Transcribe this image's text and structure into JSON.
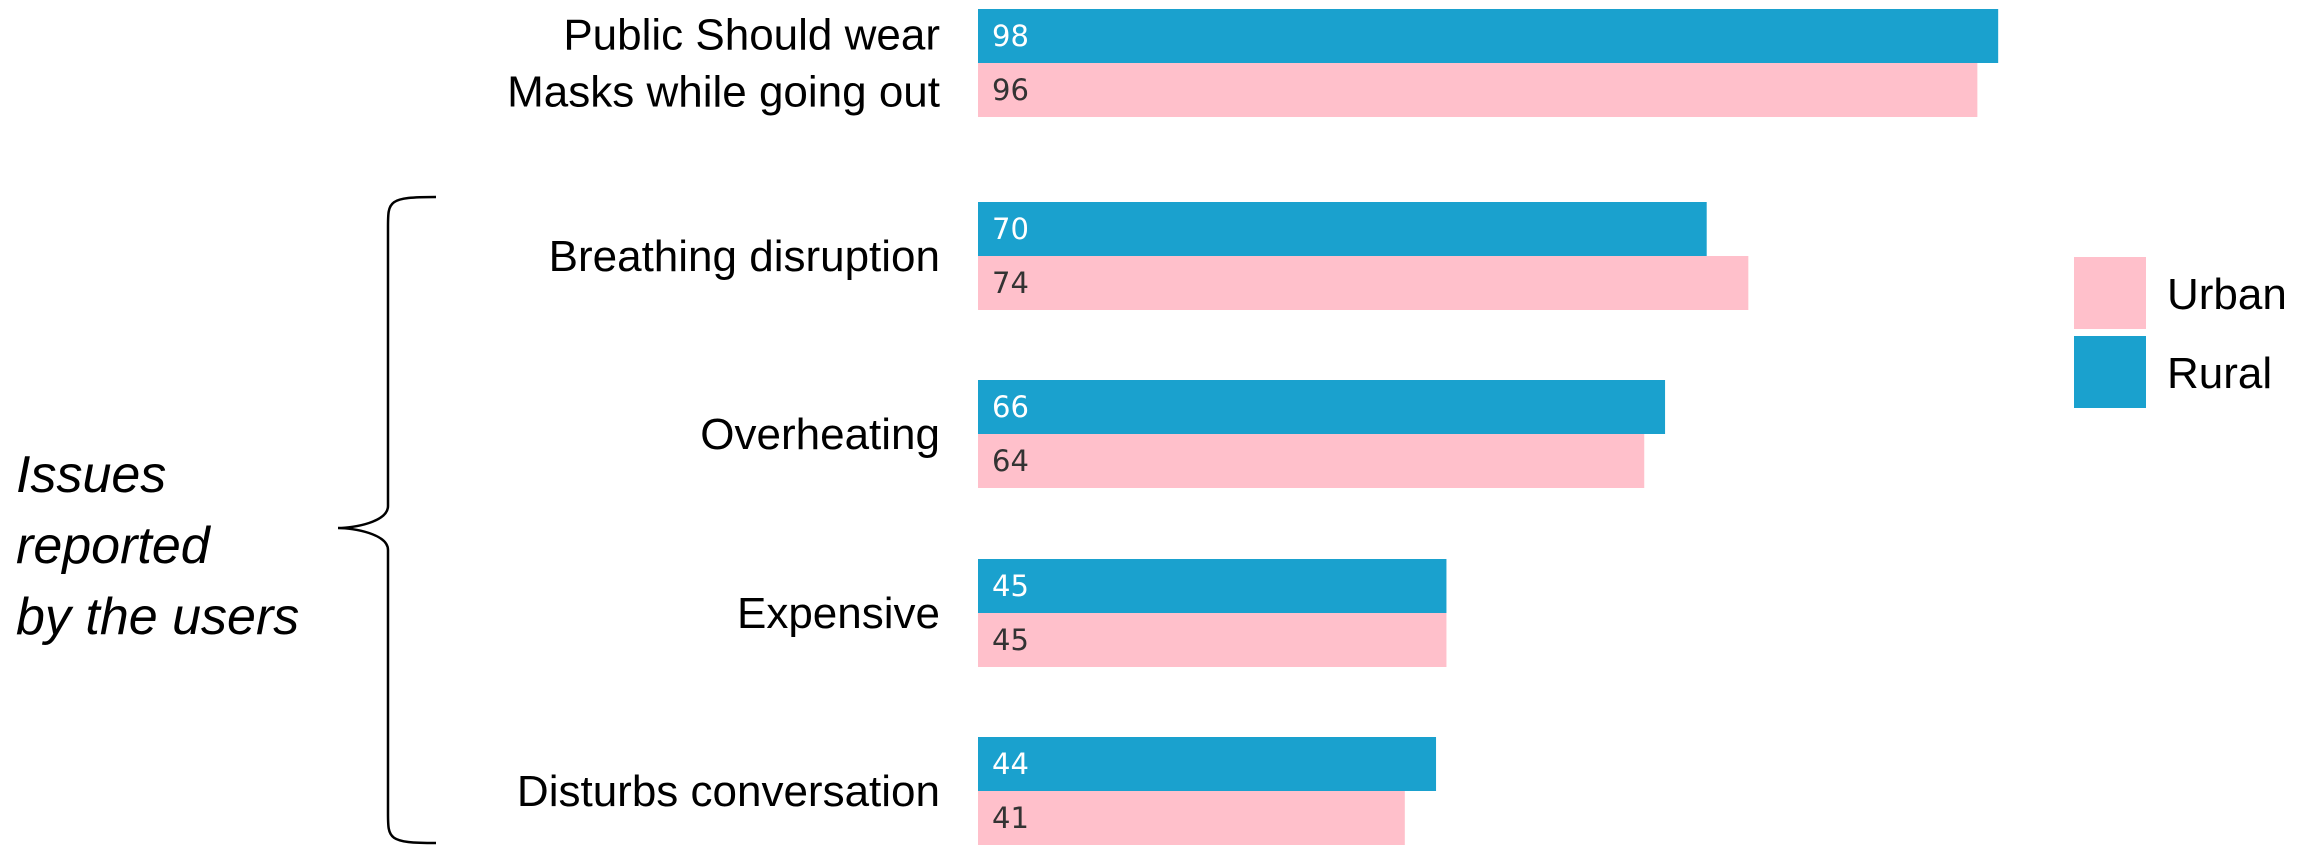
{
  "chart_data": {
    "type": "bar",
    "orientation": "horizontal",
    "categories": [
      [
        "Public Should wear",
        "Masks while going out"
      ],
      [
        "Breathing disruption"
      ],
      [
        "Overheating"
      ],
      [
        "Expensive"
      ],
      [
        "Disturbs conversation"
      ]
    ],
    "series": [
      {
        "name": "Rural",
        "color": "#1aa1ce",
        "label_color": "#ffffff",
        "values": [
          98,
          70,
          66,
          45,
          44
        ]
      },
      {
        "name": "Urban",
        "color": "#ffc0cb",
        "label_color": "#333333",
        "values": [
          96,
          74,
          64,
          45,
          41
        ]
      }
    ],
    "legend": {
      "placement": "right",
      "entries": [
        {
          "name": "Urban",
          "color": "#ffc0cb"
        },
        {
          "name": "Rural",
          "color": "#1aa1ce"
        }
      ]
    },
    "group_annotation": {
      "lines": [
        "Issues",
        "reported",
        "by the users"
      ],
      "covers_categories": [
        1,
        2,
        3,
        4
      ]
    },
    "xlim": [
      0,
      100
    ],
    "grid": false,
    "title": "",
    "xlabel": "",
    "ylabel": ""
  }
}
